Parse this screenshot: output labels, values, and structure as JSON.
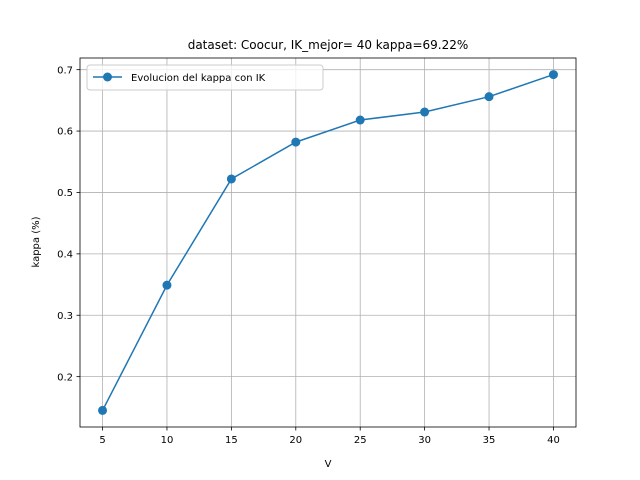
{
  "chart_data": {
    "type": "line",
    "title": "dataset: Coocur, IK_mejor= 40 kappa=69.22%",
    "xlabel": "V",
    "ylabel": "kappa (%)",
    "x": [
      5,
      10,
      15,
      20,
      25,
      30,
      35,
      40
    ],
    "series": [
      {
        "name": "Evolucion del kappa con IK",
        "values": [
          0.145,
          0.349,
          0.522,
          0.582,
          0.618,
          0.631,
          0.656,
          0.692
        ],
        "color": "#1f77b4",
        "marker": "circle"
      }
    ],
    "xlim": [
      3.25,
      41.75
    ],
    "ylim": [
      0.118,
      0.719
    ],
    "xticks": [
      5,
      10,
      15,
      20,
      25,
      30,
      35,
      40
    ],
    "yticks": [
      0.2,
      0.3,
      0.4,
      0.5,
      0.6,
      0.7
    ],
    "xtick_labels": [
      "5",
      "10",
      "15",
      "20",
      "25",
      "30",
      "35",
      "40"
    ],
    "ytick_labels": [
      "0.2",
      "0.3",
      "0.4",
      "0.5",
      "0.6",
      "0.7"
    ],
    "grid": true,
    "legend_position": "top-left"
  }
}
